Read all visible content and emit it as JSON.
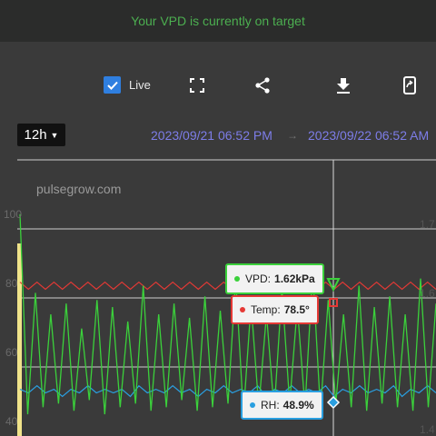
{
  "banner": {
    "message": "Your VPD is currently on target"
  },
  "toolbar": {
    "live_label": "Live",
    "live_checked": true,
    "icons": [
      "fullscreen-icon",
      "share-icon",
      "download-icon",
      "mobile-export-icon"
    ]
  },
  "range": {
    "selected": "12h"
  },
  "dates": {
    "from": "2023/09/21 06:52 PM",
    "arrow": "→",
    "to": "2023/09/22 06:52 AM"
  },
  "watermark": "pulsegrow.com",
  "axis_left": {
    "ticks": [
      "100",
      "80",
      "60",
      "40"
    ]
  },
  "axis_right": {
    "ticks": [
      "1.7",
      "1.6",
      "1.4"
    ]
  },
  "tooltips": {
    "vpd": {
      "label": "VPD:",
      "value": "1.62kPa",
      "color": "#3bd13b"
    },
    "temp": {
      "label": "Temp:",
      "value": "78.5°",
      "color": "#e53935"
    },
    "rh": {
      "label": "RH:",
      "value": "48.9%",
      "color": "#2a9fe0"
    }
  },
  "colors": {
    "accent": "#2f7fe0",
    "vpd": "#3bd13b",
    "temp": "#e53935",
    "rh": "#2a9fe0",
    "date": "#7d7de8"
  },
  "chart_data": {
    "type": "line",
    "ylim": [
      40,
      100
    ],
    "series": [
      {
        "name": "VPD",
        "values": [
          98,
          42,
          76,
          44,
          70,
          45,
          73,
          43,
          66,
          46,
          74,
          42,
          72,
          44,
          68,
          45,
          78,
          43,
          70,
          44,
          73,
          46,
          69,
          43,
          75,
          44,
          71,
          45,
          80,
          42,
          73,
          44,
          70,
          43,
          77,
          45,
          72,
          44,
          82,
          43,
          74,
          45,
          70,
          44,
          78,
          43,
          72,
          45,
          75,
          44,
          70,
          43,
          80,
          44,
          73
        ]
      },
      {
        "name": "Temp",
        "values": [
          79,
          77,
          79,
          77,
          79,
          77,
          79,
          77,
          79,
          77,
          79,
          77,
          79,
          77,
          79,
          77,
          79,
          77,
          79,
          77,
          79,
          77,
          79,
          77,
          79,
          77,
          79,
          77,
          79,
          77,
          79,
          77,
          79,
          77,
          79,
          77,
          79,
          77,
          79,
          77,
          79,
          77,
          79,
          77,
          79,
          77,
          79,
          77,
          79,
          77
        ]
      },
      {
        "name": "RH",
        "values": [
          49,
          48,
          50,
          48,
          49,
          47,
          49,
          48,
          50,
          48,
          49,
          48,
          49,
          47,
          50,
          48,
          49,
          48,
          50,
          48,
          49,
          47,
          49,
          48,
          50,
          48,
          49,
          48,
          50,
          47,
          49,
          48,
          50,
          48,
          49,
          48,
          50,
          47,
          49,
          48,
          50,
          48,
          49,
          48,
          50,
          47,
          49,
          48,
          50,
          48
        ]
      }
    ]
  }
}
